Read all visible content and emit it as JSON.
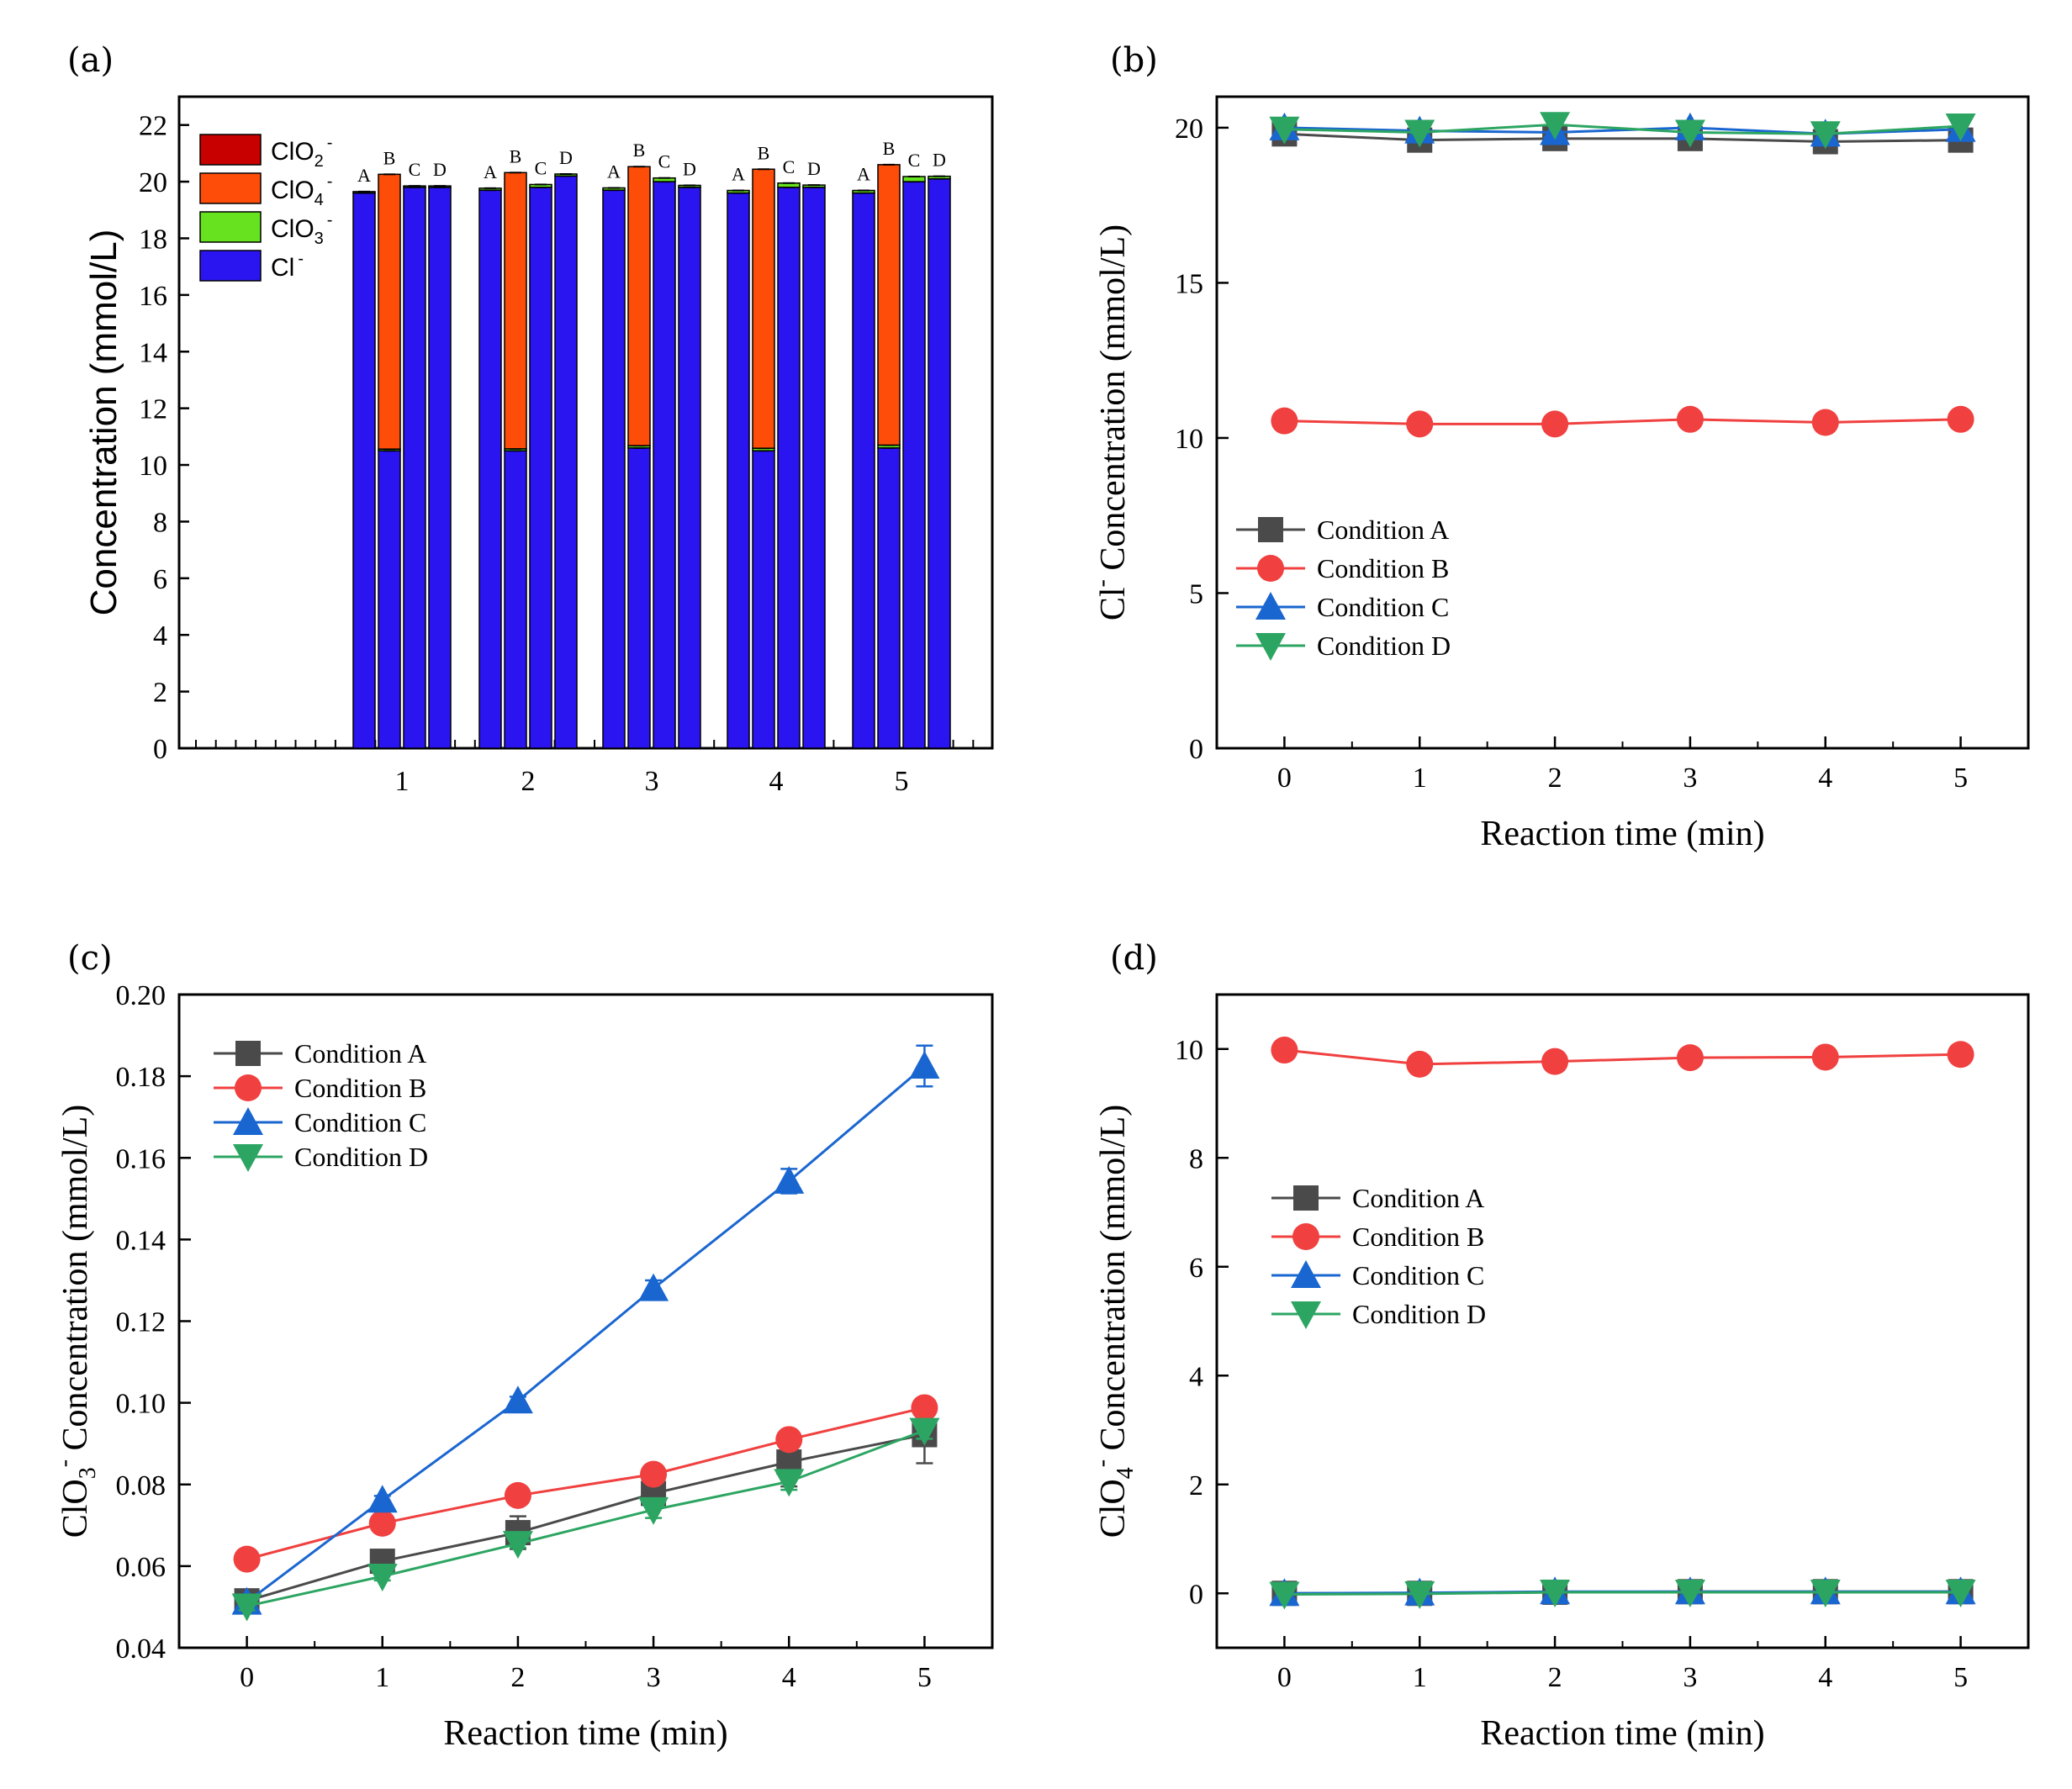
{
  "colors": {
    "Cl": "#2a14f0",
    "ClO3": "#66e21f",
    "ClO4": "#fd4d08",
    "ClO2": "#c90000",
    "A": "#4a4a4a",
    "B": "#f0403f",
    "C": "#1a66d0",
    "D": "#2ca562"
  },
  "chart_data": [
    {
      "panel": "(a)",
      "type": "bar",
      "stacked": true,
      "ylabel": "Concentration (mmol/L)",
      "ylim": [
        0,
        23
      ],
      "yticks": [
        0,
        2,
        4,
        6,
        8,
        10,
        12,
        14,
        16,
        18,
        20,
        22
      ],
      "groups": [
        "1",
        "2",
        "3",
        "4",
        "5"
      ],
      "bar_labels": [
        "A",
        "B",
        "C",
        "D"
      ],
      "legend": [
        {
          "key": "ClO2",
          "label": "ClO",
          "sub": "2",
          "sup": "-"
        },
        {
          "key": "ClO4",
          "label": "ClO",
          "sub": "4",
          "sup": "-"
        },
        {
          "key": "ClO3",
          "label": "ClO",
          "sub": "3",
          "sup": "-"
        },
        {
          "key": "Cl",
          "label": "Cl",
          "sub": "",
          "sup": "-"
        }
      ],
      "series": [
        {
          "key": "Cl",
          "name": "Cl-",
          "values": [
            [
              19.6,
              10.5,
              19.8,
              19.8
            ],
            [
              19.7,
              10.5,
              19.8,
              20.2
            ],
            [
              19.7,
              10.6,
              20.0,
              19.8
            ],
            [
              19.6,
              10.5,
              19.8,
              19.8
            ],
            [
              19.6,
              10.6,
              20.0,
              20.1
            ]
          ]
        },
        {
          "key": "ClO3",
          "name": "ClO3-",
          "values": [
            [
              0.05,
              0.06,
              0.05,
              0.05
            ],
            [
              0.07,
              0.07,
              0.1,
              0.07
            ],
            [
              0.08,
              0.08,
              0.13,
              0.07
            ],
            [
              0.09,
              0.09,
              0.15,
              0.08
            ],
            [
              0.09,
              0.1,
              0.18,
              0.09
            ]
          ]
        },
        {
          "key": "ClO4",
          "name": "ClO4-",
          "values": [
            [
              0,
              9.7,
              0,
              0
            ],
            [
              0,
              9.75,
              0,
              0
            ],
            [
              0,
              9.85,
              0,
              0
            ],
            [
              0,
              9.85,
              0,
              0
            ],
            [
              0,
              9.9,
              0,
              0
            ]
          ]
        },
        {
          "key": "ClO2",
          "name": "ClO2-",
          "values": [
            [
              0,
              0,
              0,
              0
            ],
            [
              0,
              0,
              0,
              0
            ],
            [
              0,
              0,
              0,
              0
            ],
            [
              0,
              0,
              0,
              0
            ],
            [
              0,
              0,
              0,
              0
            ]
          ]
        }
      ]
    },
    {
      "panel": "(b)",
      "type": "line",
      "xlabel": "Reaction time (min)",
      "ylabel": "Cl- Concentration (mmol/L)",
      "ylabel_main": "Cl",
      "ylabel_sup": "-",
      "ylabel_rest": " Concentration (mmol/L)",
      "xlim": [
        -0.5,
        5.5
      ],
      "ylim": [
        0,
        21
      ],
      "xticks": [
        0,
        1,
        2,
        3,
        4,
        5
      ],
      "yticks": [
        0,
        5,
        10,
        15,
        20
      ],
      "x": [
        0,
        1,
        2,
        3,
        4,
        5
      ],
      "series": [
        {
          "key": "A",
          "name": "Condition A",
          "marker": "square",
          "values": [
            19.8,
            19.6,
            19.65,
            19.65,
            19.55,
            19.6
          ]
        },
        {
          "key": "B",
          "name": "Condition B",
          "marker": "circle",
          "values": [
            10.55,
            10.45,
            10.45,
            10.6,
            10.5,
            10.6
          ]
        },
        {
          "key": "C",
          "name": "Condition C",
          "marker": "triangle-up",
          "values": [
            20.0,
            19.9,
            19.85,
            20.0,
            19.8,
            19.95
          ]
        },
        {
          "key": "D",
          "name": "Condition D",
          "marker": "triangle-down",
          "values": [
            19.95,
            19.85,
            20.1,
            19.85,
            19.8,
            20.05
          ]
        }
      ]
    },
    {
      "panel": "(c)",
      "type": "line",
      "xlabel": "Reaction time (min)",
      "ylabel": "ClO3- Concentration (mmol/L)",
      "ylabel_main": "ClO",
      "ylabel_sub": "3",
      "ylabel_sup": "-",
      "ylabel_rest": "  Concentration (mmol/L)",
      "xlim": [
        -0.5,
        5.5
      ],
      "ylim": [
        0.04,
        0.2
      ],
      "xticks": [
        0,
        1,
        2,
        3,
        4,
        5
      ],
      "yticks": [
        0.04,
        0.06,
        0.08,
        0.1,
        0.12,
        0.14,
        0.16,
        0.18,
        0.2
      ],
      "ytick_labels": [
        "0.04",
        "0.06",
        "0.08",
        "0.10",
        "0.12",
        "0.14",
        "0.16",
        "0.18",
        "0.20"
      ],
      "x": [
        0,
        1,
        2,
        3,
        4,
        5
      ],
      "series": [
        {
          "key": "A",
          "name": "Condition A",
          "marker": "square",
          "values": [
            0.0515,
            0.0612,
            0.0682,
            0.0778,
            0.0855,
            0.0922
          ],
          "errors": [
            0.001,
            0.001,
            0.004,
            0.003,
            0.006,
            0.007
          ]
        },
        {
          "key": "B",
          "name": "Condition B",
          "marker": "circle",
          "values": [
            0.0617,
            0.0705,
            0.0773,
            0.0825,
            0.091,
            0.0988
          ],
          "errors": [
            0.001,
            0.001,
            0.001,
            0.001,
            0.001,
            0.001
          ]
        },
        {
          "key": "C",
          "name": "Condition C",
          "marker": "triangle-up",
          "values": [
            0.0512,
            0.0762,
            0.1005,
            0.128,
            0.1543,
            0.1825
          ],
          "errors": [
            0.001,
            0.001,
            0.001,
            0.002,
            0.003,
            0.005
          ]
        },
        {
          "key": "D",
          "name": "Condition D",
          "marker": "triangle-down",
          "values": [
            0.0502,
            0.0575,
            0.0655,
            0.0738,
            0.0807,
            0.0932
          ],
          "errors": [
            0.001,
            0.001,
            0.001,
            0.002,
            0.002,
            0.002
          ]
        }
      ]
    },
    {
      "panel": "(d)",
      "type": "line",
      "xlabel": "Reaction time (min)",
      "ylabel": "ClO4- Concentration (mmol/L)",
      "ylabel_main": "ClO",
      "ylabel_sub": "4",
      "ylabel_sup": "-",
      "ylabel_rest": "  Concentration (mmol/L)",
      "xlim": [
        -0.5,
        5.5
      ],
      "ylim": [
        -1,
        11
      ],
      "xticks": [
        0,
        1,
        2,
        3,
        4,
        5
      ],
      "yticks": [
        0,
        2,
        4,
        6,
        8,
        10
      ],
      "x": [
        0,
        1,
        2,
        3,
        4,
        5
      ],
      "series": [
        {
          "key": "A",
          "name": "Condition A",
          "marker": "square",
          "values": [
            0,
            0,
            0.02,
            0.03,
            0.03,
            0.03
          ]
        },
        {
          "key": "B",
          "name": "Condition B",
          "marker": "circle",
          "values": [
            9.98,
            9.72,
            9.77,
            9.84,
            9.85,
            9.9
          ]
        },
        {
          "key": "C",
          "name": "Condition C",
          "marker": "triangle-up",
          "values": [
            0,
            0.01,
            0.03,
            0.03,
            0.03,
            0.03
          ]
        },
        {
          "key": "D",
          "name": "Condition D",
          "marker": "triangle-down",
          "values": [
            -0.02,
            -0.01,
            0.02,
            0.02,
            0.02,
            0.02
          ]
        }
      ]
    }
  ]
}
